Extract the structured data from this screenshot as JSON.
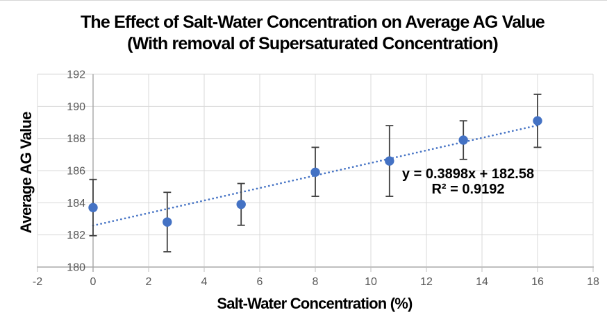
{
  "title": {
    "line1": "The Effect of Salt-Water Concentration on Average AG Value",
    "line2": "(With removal of Supersaturated Concentration)"
  },
  "chart_data": {
    "type": "scatter",
    "title": "The Effect of Salt-Water Concentration on Average AG Value (With removal of Supersaturated Concentration)",
    "xlabel": "Salt-Water Concentration (%)",
    "ylabel": "Average AG Value",
    "xlim": [
      -2,
      18
    ],
    "ylim": [
      180,
      192
    ],
    "x_ticks": [
      -2,
      0,
      2,
      4,
      6,
      8,
      10,
      12,
      14,
      16,
      18
    ],
    "y_ticks": [
      180,
      182,
      184,
      186,
      188,
      190,
      192
    ],
    "grid": true,
    "legend": "none",
    "points": [
      {
        "x": 0,
        "y": 183.7,
        "y_low": 181.95,
        "y_high": 185.45
      },
      {
        "x": 2.67,
        "y": 182.8,
        "y_low": 180.95,
        "y_high": 184.65
      },
      {
        "x": 5.33,
        "y": 183.9,
        "y_low": 182.6,
        "y_high": 185.2
      },
      {
        "x": 8,
        "y": 185.9,
        "y_low": 184.4,
        "y_high": 187.45
      },
      {
        "x": 10.67,
        "y": 186.6,
        "y_low": 184.4,
        "y_high": 188.8
      },
      {
        "x": 13.33,
        "y": 187.9,
        "y_low": 186.7,
        "y_high": 189.1
      },
      {
        "x": 16,
        "y": 189.1,
        "y_low": 187.45,
        "y_high": 190.75
      }
    ],
    "trendline": {
      "style": "dotted",
      "slope": 0.3898,
      "intercept": 182.58,
      "x_start": 0,
      "x_end": 16,
      "equation_label": "y = 0.3898x + 182.58",
      "r2_label": "R² = 0.9192"
    },
    "colors": {
      "marker": "#4472c4",
      "trendline": "#4472c4",
      "error_bar": "#404040",
      "gridline": "#d9d9d9",
      "axis_line": "#bfbfbf",
      "zero_axis_line": "#a6a6a6",
      "tick_label": "#595959",
      "title_text": "#000000"
    }
  }
}
